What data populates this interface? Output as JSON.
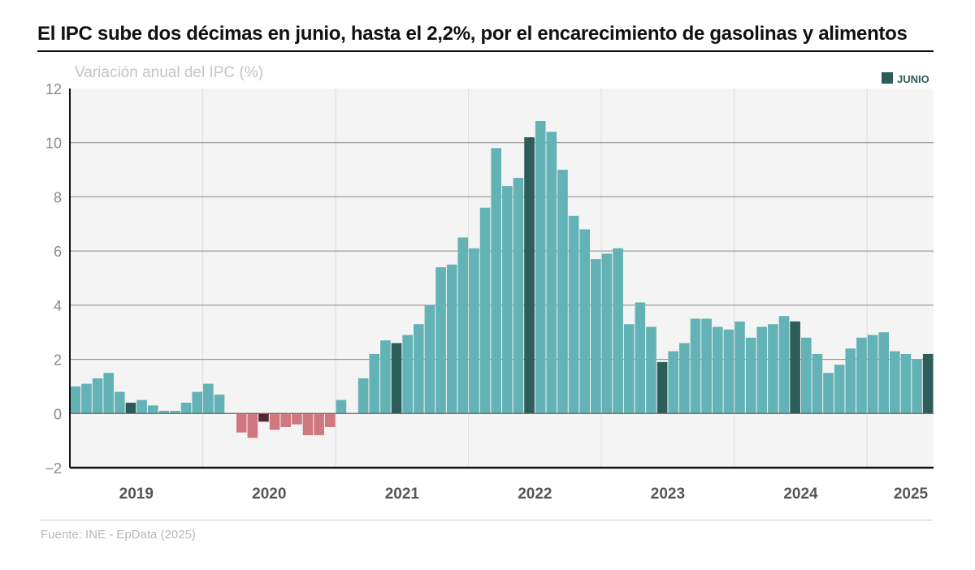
{
  "title": "El IPC sube dos décimas en junio, hasta el 2,2%, por el encarecimiento de gasolinas y alimentos",
  "source": "Fuente: INE - EpData (2025)",
  "colors": {
    "positive": "#63b2b5",
    "negative": "#cf7880",
    "june_positive": "#2d5d5b",
    "june_negative": "#55262e",
    "plot_bg": "#f4f4f4",
    "gridline": "#888888",
    "axis": "#111111"
  },
  "chart_data": {
    "type": "bar",
    "subtitle": "Variación anual del IPC (%)",
    "ylabel": "Variación anual del IPC (%)",
    "xlabel": "",
    "ylim": [
      -2,
      12
    ],
    "yticks": [
      12,
      10,
      8,
      6,
      4,
      2,
      0,
      -2
    ],
    "ytick_labels": [
      "12",
      "10",
      "8",
      "6",
      "4",
      "2",
      "0",
      "−2"
    ],
    "legend": [
      {
        "label": "JUNIO",
        "color": "#2d5d5b"
      }
    ],
    "legend_position": "top-right",
    "years": [
      "2019",
      "2020",
      "2021",
      "2022",
      "2023",
      "2024",
      "2025"
    ],
    "categories": [
      "2019-01",
      "2019-02",
      "2019-03",
      "2019-04",
      "2019-05",
      "2019-06",
      "2019-07",
      "2019-08",
      "2019-09",
      "2019-10",
      "2019-11",
      "2019-12",
      "2020-01",
      "2020-02",
      "2020-03",
      "2020-04",
      "2020-05",
      "2020-06",
      "2020-07",
      "2020-08",
      "2020-09",
      "2020-10",
      "2020-11",
      "2020-12",
      "2021-01",
      "2021-02",
      "2021-03",
      "2021-04",
      "2021-05",
      "2021-06",
      "2021-07",
      "2021-08",
      "2021-09",
      "2021-10",
      "2021-11",
      "2021-12",
      "2022-01",
      "2022-02",
      "2022-03",
      "2022-04",
      "2022-05",
      "2022-06",
      "2022-07",
      "2022-08",
      "2022-09",
      "2022-10",
      "2022-11",
      "2022-12",
      "2023-01",
      "2023-02",
      "2023-03",
      "2023-04",
      "2023-05",
      "2023-06",
      "2023-07",
      "2023-08",
      "2023-09",
      "2023-10",
      "2023-11",
      "2023-12",
      "2024-01",
      "2024-02",
      "2024-03",
      "2024-04",
      "2024-05",
      "2024-06",
      "2024-07",
      "2024-08",
      "2024-09",
      "2024-10",
      "2024-11",
      "2024-12",
      "2025-01",
      "2025-02",
      "2025-03",
      "2025-04",
      "2025-05",
      "2025-06"
    ],
    "values": [
      1.0,
      1.1,
      1.3,
      1.5,
      0.8,
      0.4,
      0.5,
      0.3,
      0.1,
      0.1,
      0.4,
      0.8,
      1.1,
      0.7,
      0.0,
      -0.7,
      -0.9,
      -0.3,
      -0.6,
      -0.5,
      -0.4,
      -0.8,
      -0.8,
      -0.5,
      0.5,
      0.0,
      1.3,
      2.2,
      2.7,
      2.6,
      2.9,
      3.3,
      4.0,
      5.4,
      5.5,
      6.5,
      6.1,
      7.6,
      9.8,
      8.4,
      8.7,
      10.2,
      10.8,
      10.4,
      9.0,
      7.3,
      6.8,
      5.7,
      5.9,
      6.1,
      3.3,
      4.1,
      3.2,
      1.9,
      2.3,
      2.6,
      3.5,
      3.5,
      3.2,
      3.1,
      3.4,
      2.8,
      3.2,
      3.3,
      3.6,
      3.4,
      2.8,
      2.2,
      1.5,
      1.8,
      2.4,
      2.8,
      2.9,
      3.0,
      2.3,
      2.2,
      2.0,
      2.2
    ],
    "highlight_month": "06"
  }
}
